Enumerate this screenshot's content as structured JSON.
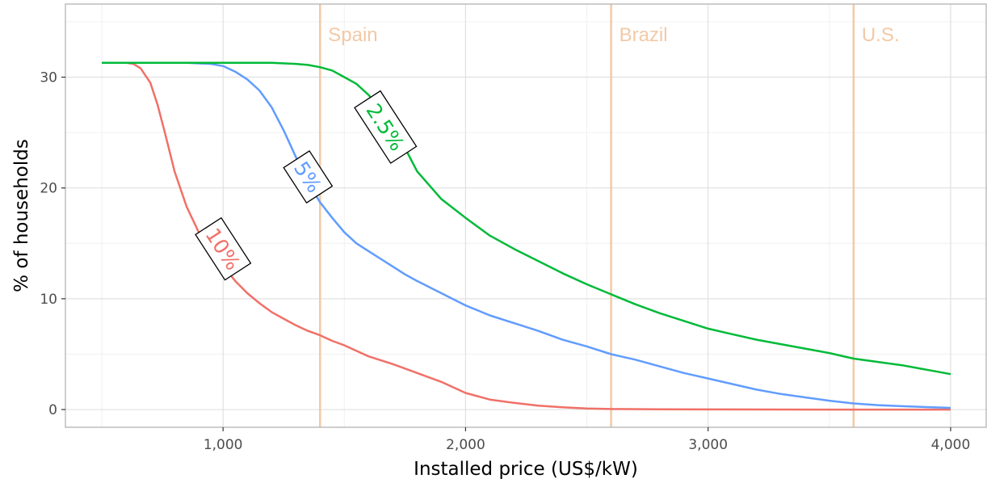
{
  "chart_data": {
    "type": "line",
    "title": "",
    "xlabel": "Installed price (US$/kW)",
    "ylabel": "% of households",
    "xlim": [
      350,
      4150
    ],
    "ylim": [
      -1.6,
      36.6
    ],
    "x_ticks": [
      1000,
      2000,
      3000,
      4000
    ],
    "x_tick_labels": [
      "1,000",
      "2,000",
      "3,000",
      "4,000"
    ],
    "y_ticks": [
      0,
      10,
      20,
      30
    ],
    "y_tick_labels": [
      "0",
      "10",
      "20",
      "30"
    ],
    "grid": true,
    "legend": "none",
    "reference_lines": [
      {
        "label": "Spain",
        "x": 1400,
        "color": "#f2c9a6"
      },
      {
        "label": "Brazil",
        "x": 2600,
        "color": "#f2c9a6"
      },
      {
        "label": "U.S.",
        "x": 3600,
        "color": "#f2c9a6"
      }
    ],
    "series": [
      {
        "name": "10%",
        "color": "#f07068",
        "label_at": [
          1000,
          14.5
        ],
        "points": [
          [
            500,
            31.3
          ],
          [
            550,
            31.3
          ],
          [
            600,
            31.3
          ],
          [
            630,
            31.2
          ],
          [
            660,
            30.8
          ],
          [
            700,
            29.5
          ],
          [
            730,
            27.5
          ],
          [
            760,
            25.0
          ],
          [
            800,
            21.5
          ],
          [
            850,
            18.3
          ],
          [
            900,
            16.0
          ],
          [
            950,
            14.5
          ],
          [
            1000,
            13.0
          ],
          [
            1050,
            11.6
          ],
          [
            1100,
            10.5
          ],
          [
            1150,
            9.6
          ],
          [
            1200,
            8.8
          ],
          [
            1250,
            8.2
          ],
          [
            1300,
            7.6
          ],
          [
            1350,
            7.1
          ],
          [
            1400,
            6.7
          ],
          [
            1450,
            6.2
          ],
          [
            1500,
            5.8
          ],
          [
            1550,
            5.3
          ],
          [
            1600,
            4.8
          ],
          [
            1700,
            4.1
          ],
          [
            1800,
            3.3
          ],
          [
            1900,
            2.5
          ],
          [
            2000,
            1.5
          ],
          [
            2100,
            0.9
          ],
          [
            2200,
            0.6
          ],
          [
            2300,
            0.35
          ],
          [
            2400,
            0.2
          ],
          [
            2500,
            0.1
          ],
          [
            2600,
            0.05
          ],
          [
            2800,
            0.02
          ],
          [
            3000,
            0.01
          ],
          [
            3500,
            0.0
          ],
          [
            4000,
            0.0
          ]
        ]
      },
      {
        "name": "5%",
        "color": "#619cff",
        "label_at": [
          1350,
          21.0
        ],
        "points": [
          [
            500,
            31.3
          ],
          [
            700,
            31.3
          ],
          [
            850,
            31.3
          ],
          [
            950,
            31.2
          ],
          [
            1000,
            31.0
          ],
          [
            1050,
            30.5
          ],
          [
            1100,
            29.8
          ],
          [
            1150,
            28.8
          ],
          [
            1200,
            27.3
          ],
          [
            1250,
            25.2
          ],
          [
            1300,
            22.8
          ],
          [
            1350,
            20.5
          ],
          [
            1400,
            18.7
          ],
          [
            1450,
            17.3
          ],
          [
            1500,
            16.0
          ],
          [
            1550,
            15.0
          ],
          [
            1600,
            14.3
          ],
          [
            1650,
            13.6
          ],
          [
            1700,
            12.9
          ],
          [
            1750,
            12.2
          ],
          [
            1800,
            11.6
          ],
          [
            1900,
            10.5
          ],
          [
            2000,
            9.4
          ],
          [
            2100,
            8.5
          ],
          [
            2200,
            7.8
          ],
          [
            2300,
            7.1
          ],
          [
            2400,
            6.3
          ],
          [
            2500,
            5.7
          ],
          [
            2600,
            5.0
          ],
          [
            2700,
            4.5
          ],
          [
            2800,
            3.9
          ],
          [
            2900,
            3.3
          ],
          [
            3000,
            2.8
          ],
          [
            3100,
            2.3
          ],
          [
            3200,
            1.8
          ],
          [
            3300,
            1.4
          ],
          [
            3400,
            1.1
          ],
          [
            3500,
            0.8
          ],
          [
            3600,
            0.55
          ],
          [
            3700,
            0.4
          ],
          [
            3800,
            0.3
          ],
          [
            3900,
            0.22
          ],
          [
            4000,
            0.15
          ]
        ]
      },
      {
        "name": "2.5%",
        "color": "#00ba38",
        "label_at": [
          1670,
          25.5
        ],
        "points": [
          [
            500,
            31.3
          ],
          [
            800,
            31.3
          ],
          [
            1000,
            31.3
          ],
          [
            1200,
            31.3
          ],
          [
            1300,
            31.2
          ],
          [
            1350,
            31.1
          ],
          [
            1400,
            30.9
          ],
          [
            1450,
            30.6
          ],
          [
            1500,
            30.0
          ],
          [
            1550,
            29.4
          ],
          [
            1600,
            28.4
          ],
          [
            1650,
            27.2
          ],
          [
            1700,
            25.5
          ],
          [
            1750,
            23.6
          ],
          [
            1800,
            21.5
          ],
          [
            1900,
            19.0
          ],
          [
            2000,
            17.3
          ],
          [
            2100,
            15.7
          ],
          [
            2200,
            14.5
          ],
          [
            2300,
            13.4
          ],
          [
            2400,
            12.3
          ],
          [
            2500,
            11.3
          ],
          [
            2600,
            10.4
          ],
          [
            2700,
            9.5
          ],
          [
            2800,
            8.7
          ],
          [
            2900,
            8.0
          ],
          [
            3000,
            7.3
          ],
          [
            3100,
            6.8
          ],
          [
            3200,
            6.3
          ],
          [
            3300,
            5.9
          ],
          [
            3400,
            5.5
          ],
          [
            3500,
            5.1
          ],
          [
            3600,
            4.6
          ],
          [
            3700,
            4.3
          ],
          [
            3800,
            4.0
          ],
          [
            3900,
            3.6
          ],
          [
            4000,
            3.2
          ]
        ]
      }
    ]
  }
}
